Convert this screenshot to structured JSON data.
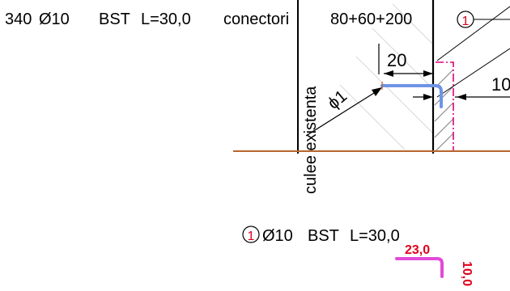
{
  "title_line": {
    "count": "340",
    "dia": "Ø10",
    "steel": "BST",
    "length": "L=30,0",
    "word": "conectori",
    "spacing": "80+60+200"
  },
  "callout_number": "1",
  "vertical_label": "culee existenta",
  "dim_20": "20",
  "dim_right_partial": "10",
  "phi_label": "ϕ1",
  "bar_mark": {
    "number": "1",
    "dia": "Ø10",
    "steel": "BST",
    "length": "L=30,0",
    "leg_horizontal": "23,0",
    "leg_vertical": "10,0"
  },
  "colors": {
    "line": "#000000",
    "red": "#e0001b",
    "magenta": "#e0007a",
    "blue": "#6f93e6",
    "brown": "#b9652c",
    "hatch": "#8d8d8d",
    "bar_shape": "#e24ad8"
  }
}
